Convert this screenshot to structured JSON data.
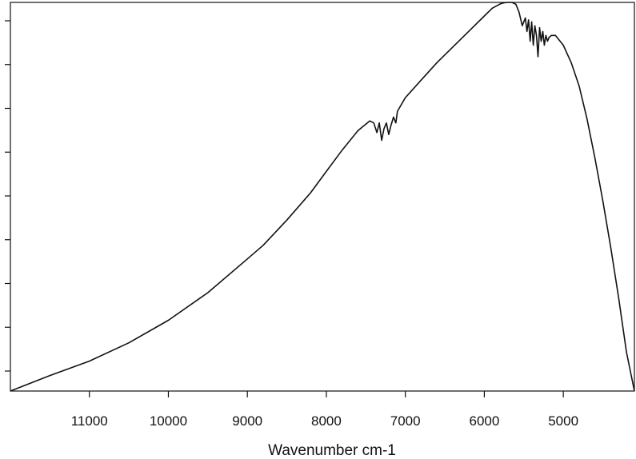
{
  "chart_data": {
    "type": "line",
    "title": "",
    "xlabel": "Wavenumber cm-1",
    "ylabel": "",
    "xlim": [
      12000,
      4100
    ],
    "x_reversed": true,
    "ylim": [
      0,
      1.0
    ],
    "grid": false,
    "x_ticks": [
      11000,
      10000,
      9000,
      8000,
      7000,
      6000,
      5000
    ],
    "y_tick_count": 9,
    "series": [
      {
        "name": "",
        "color": "#111111",
        "x": [
          12000,
          11500,
          11000,
          10500,
          10000,
          9500,
          9000,
          8800,
          8500,
          8200,
          8000,
          7800,
          7600,
          7450,
          7400,
          7360,
          7330,
          7300,
          7270,
          7240,
          7210,
          7180,
          7150,
          7120,
          7100,
          7000,
          6800,
          6600,
          6400,
          6200,
          6000,
          5900,
          5800,
          5750,
          5700,
          5650,
          5600,
          5560,
          5520,
          5480,
          5460,
          5440,
          5420,
          5400,
          5380,
          5360,
          5340,
          5320,
          5300,
          5280,
          5260,
          5240,
          5220,
          5200,
          5180,
          5150,
          5100,
          5000,
          4900,
          4800,
          4700,
          4600,
          4500,
          4400,
          4300,
          4200,
          4100
        ],
        "y": [
          0.0,
          0.04,
          0.077,
          0.124,
          0.182,
          0.253,
          0.34,
          0.375,
          0.44,
          0.51,
          0.565,
          0.62,
          0.67,
          0.695,
          0.69,
          0.665,
          0.69,
          0.645,
          0.675,
          0.69,
          0.66,
          0.685,
          0.705,
          0.69,
          0.72,
          0.755,
          0.8,
          0.845,
          0.885,
          0.925,
          0.965,
          0.985,
          0.996,
          0.999,
          1.0,
          1.0,
          0.995,
          0.975,
          0.94,
          0.96,
          0.925,
          0.955,
          0.9,
          0.95,
          0.89,
          0.94,
          0.915,
          0.86,
          0.935,
          0.9,
          0.925,
          0.89,
          0.915,
          0.9,
          0.91,
          0.915,
          0.915,
          0.89,
          0.845,
          0.785,
          0.7,
          0.6,
          0.49,
          0.37,
          0.24,
          0.1,
          0.0
        ]
      }
    ]
  }
}
